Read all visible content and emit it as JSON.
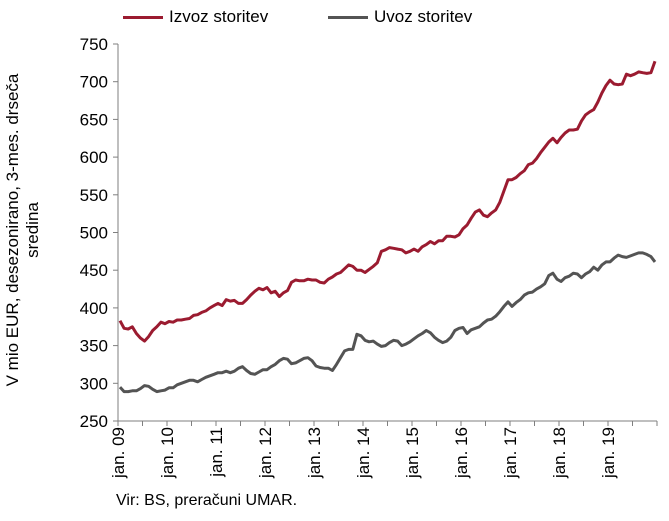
{
  "chart_data": {
    "type": "line",
    "title": "",
    "ylabel_lines": [
      "V mio EUR, desezonirano, 3-mes. drseča",
      "sredina"
    ],
    "ylim": [
      250,
      750
    ],
    "yticks": [
      250,
      300,
      350,
      400,
      450,
      500,
      550,
      600,
      650,
      700,
      750
    ],
    "x_start": "jan. 09",
    "x_end": "dec. 19",
    "xtick_labels": [
      "jan. 09",
      "jan. 10",
      "jan. 11",
      "jan. 12",
      "jan. 13",
      "jan. 14",
      "jan. 15",
      "jan. 16",
      "jan. 17",
      "jan. 18",
      "jan. 19"
    ],
    "grid": false,
    "legend_position": "top",
    "series": [
      {
        "name": "Izvoz storitev",
        "color": "#9b1b30",
        "values": [
          383,
          373,
          372,
          375,
          366,
          360,
          356,
          362,
          370,
          375,
          381,
          379,
          382,
          381,
          384,
          384,
          385,
          386,
          390,
          391,
          394,
          396,
          400,
          403,
          406,
          403,
          411,
          409,
          410,
          406,
          406,
          411,
          417,
          422,
          426,
          424,
          427,
          420,
          422,
          415,
          420,
          423,
          434,
          437,
          436,
          436,
          438,
          437,
          437,
          434,
          433,
          438,
          441,
          445,
          447,
          452,
          457,
          455,
          450,
          450,
          447,
          451,
          455,
          460,
          475,
          477,
          480,
          479,
          478,
          477,
          473,
          475,
          478,
          475,
          481,
          484,
          488,
          485,
          489,
          489,
          495,
          495,
          494,
          497,
          505,
          510,
          519,
          527,
          530,
          523,
          521,
          526,
          530,
          540,
          555,
          570,
          570,
          573,
          578,
          582,
          590,
          592,
          598,
          606,
          613,
          620,
          625,
          619,
          626,
          632,
          636,
          636,
          637,
          648,
          656,
          660,
          663,
          673,
          685,
          695,
          702,
          697,
          696,
          697,
          710,
          708,
          710,
          713,
          712,
          711,
          712,
          727
        ]
      },
      {
        "name": "Uvoz storitev",
        "color": "#545454",
        "values": [
          295,
          289,
          289,
          290,
          290,
          293,
          297,
          296,
          292,
          289,
          290,
          291,
          294,
          294,
          298,
          300,
          302,
          304,
          304,
          302,
          305,
          308,
          310,
          312,
          314,
          314,
          316,
          314,
          316,
          320,
          322,
          317,
          313,
          312,
          315,
          318,
          318,
          322,
          325,
          330,
          333,
          332,
          326,
          327,
          330,
          333,
          334,
          330,
          323,
          321,
          320,
          320,
          317,
          325,
          334,
          343,
          345,
          345,
          365,
          363,
          357,
          355,
          356,
          352,
          349,
          350,
          354,
          357,
          356,
          350,
          352,
          355,
          359,
          363,
          366,
          370,
          367,
          361,
          357,
          354,
          356,
          361,
          370,
          373,
          374,
          366,
          371,
          373,
          375,
          380,
          384,
          385,
          389,
          395,
          402,
          408,
          402,
          407,
          411,
          417,
          420,
          421,
          425,
          428,
          432,
          443,
          446,
          438,
          435,
          440,
          442,
          446,
          445,
          440,
          445,
          448,
          454,
          450,
          457,
          461,
          461,
          466,
          470,
          468,
          467,
          469,
          471,
          473,
          473,
          471,
          468,
          461
        ]
      }
    ],
    "source": "Vir: BS, preračuni UMAR."
  }
}
